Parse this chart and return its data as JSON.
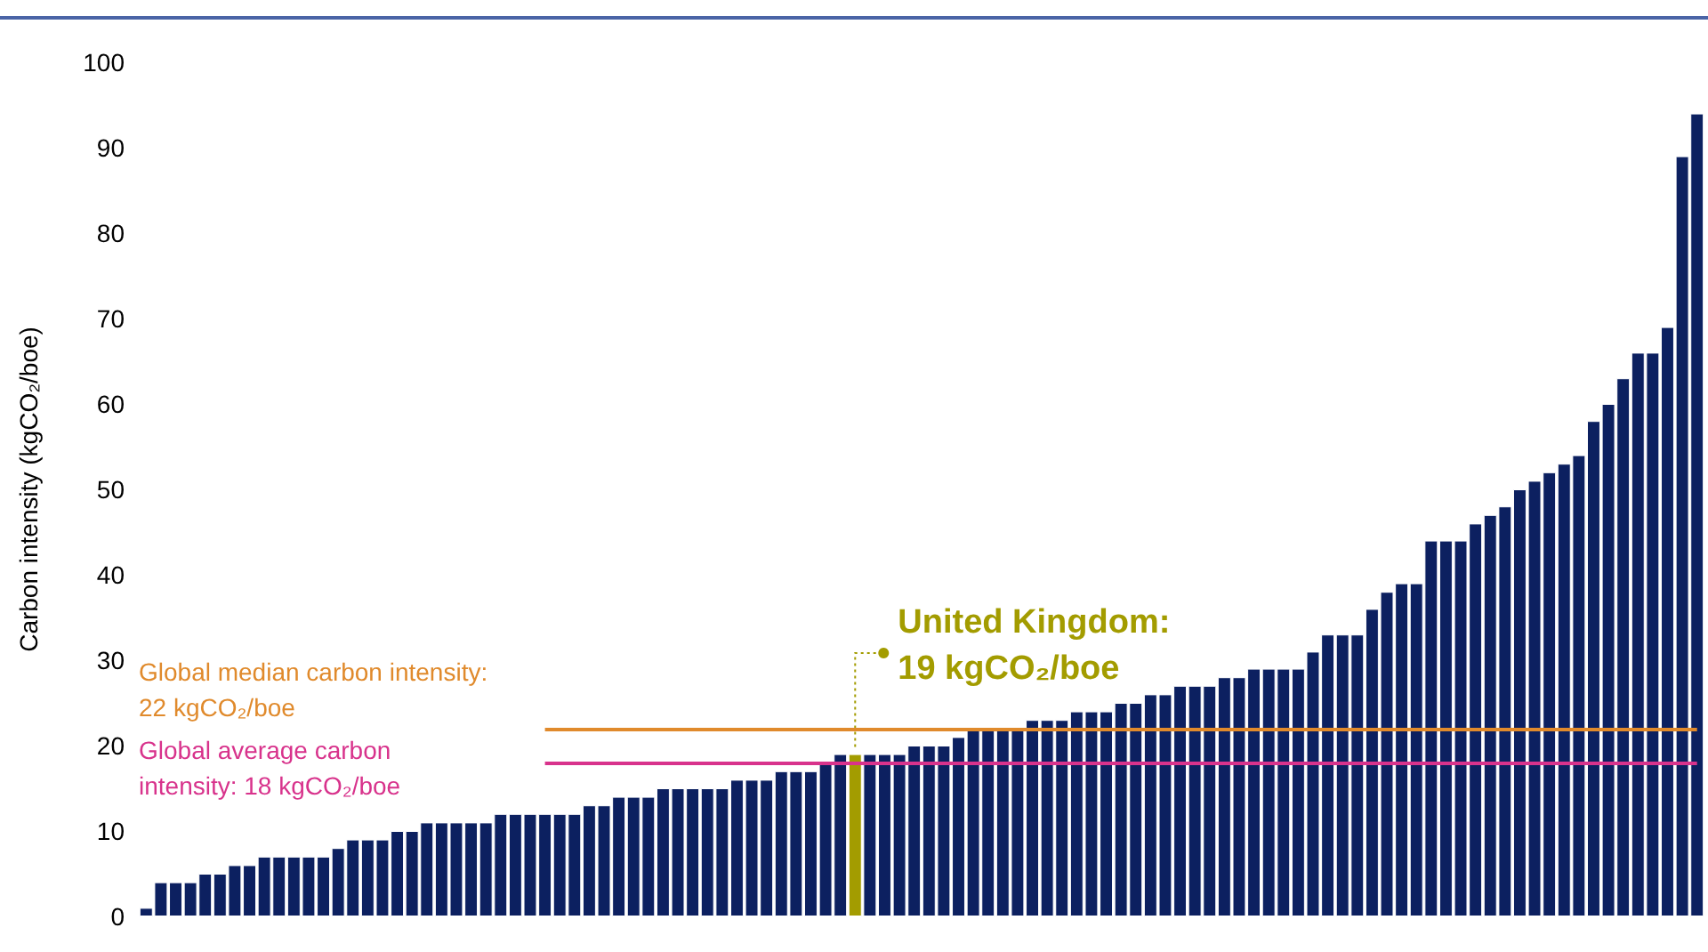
{
  "chart_data": {
    "type": "bar",
    "ylabel": "Carbon intensity (kgCO₂/boe)",
    "categories": [
      null,
      null,
      null,
      null,
      null,
      null,
      null,
      null,
      null,
      null,
      null,
      null,
      null,
      null,
      null,
      null,
      null,
      null,
      null,
      null,
      null,
      null,
      null,
      null,
      null,
      null,
      null,
      null,
      null,
      null,
      null,
      null,
      null,
      null,
      null,
      null,
      null,
      null,
      null,
      null,
      null,
      null,
      null,
      null,
      null,
      null,
      null,
      null,
      null,
      null,
      null,
      null,
      null,
      null,
      null,
      null,
      null,
      null,
      null,
      null,
      null,
      null,
      null,
      null,
      null,
      null,
      null,
      null,
      null,
      null,
      null,
      null,
      null,
      null,
      null,
      null,
      null,
      null,
      null,
      null,
      null,
      null,
      null,
      null,
      null,
      null,
      null,
      null,
      null,
      null,
      null,
      null,
      null,
      null,
      null,
      null,
      null,
      null,
      null,
      null,
      null,
      null,
      null,
      null,
      null,
      null
    ],
    "values": [
      1,
      4,
      4,
      4,
      5,
      5,
      6,
      6,
      7,
      7,
      7,
      7,
      7,
      8,
      9,
      9,
      9,
      10,
      10,
      11,
      11,
      11,
      11,
      11,
      12,
      12,
      12,
      12,
      12,
      12,
      13,
      13,
      14,
      14,
      14,
      15,
      15,
      15,
      15,
      15,
      16,
      16,
      16,
      17,
      17,
      17,
      18,
      19,
      19,
      19,
      19,
      19,
      20,
      20,
      20,
      21,
      22,
      22,
      22,
      22,
      23,
      23,
      23,
      24,
      24,
      24,
      25,
      25,
      26,
      26,
      27,
      27,
      27,
      28,
      28,
      29,
      29,
      29,
      29,
      31,
      33,
      33,
      33,
      36,
      38,
      39,
      39,
      44,
      44,
      44,
      46,
      47,
      48,
      50,
      51,
      52,
      53,
      54,
      58,
      60,
      63,
      66,
      66,
      69,
      89,
      94
    ],
    "colors": [
      "#0c2060",
      "#0c2060",
      "#0c2060",
      "#0c2060",
      "#0c2060",
      "#0c2060",
      "#0c2060",
      "#0c2060",
      "#0c2060",
      "#0c2060",
      "#0c2060",
      "#0c2060",
      "#0c2060",
      "#0c2060",
      "#0c2060",
      "#0c2060",
      "#0c2060",
      "#0c2060",
      "#0c2060",
      "#0c2060",
      "#0c2060",
      "#0c2060",
      "#0c2060",
      "#0c2060",
      "#0c2060",
      "#0c2060",
      "#0c2060",
      "#0c2060",
      "#0c2060",
      "#0c2060",
      "#0c2060",
      "#0c2060",
      "#0c2060",
      "#0c2060",
      "#0c2060",
      "#0c2060",
      "#0c2060",
      "#0c2060",
      "#0c2060",
      "#0c2060",
      "#0c2060",
      "#0c2060",
      "#0c2060",
      "#0c2060",
      "#0c2060",
      "#0c2060",
      "#0c2060",
      "#0c2060",
      "#a39c00",
      "#0c2060",
      "#0c2060",
      "#0c2060",
      "#0c2060",
      "#0c2060",
      "#0c2060",
      "#0c2060",
      "#0c2060",
      "#0c2060",
      "#0c2060",
      "#0c2060",
      "#0c2060",
      "#0c2060",
      "#0c2060",
      "#0c2060",
      "#0c2060",
      "#0c2060",
      "#0c2060",
      "#0c2060",
      "#0c2060",
      "#0c2060",
      "#0c2060",
      "#0c2060",
      "#0c2060",
      "#0c2060",
      "#0c2060",
      "#0c2060",
      "#0c2060",
      "#0c2060",
      "#0c2060",
      "#0c2060",
      "#0c2060",
      "#0c2060",
      "#0c2060",
      "#0c2060",
      "#0c2060",
      "#0c2060",
      "#0c2060",
      "#0c2060",
      "#0c2060",
      "#0c2060",
      "#0c2060",
      "#0c2060",
      "#0c2060",
      "#0c2060",
      "#0c2060",
      "#0c2060",
      "#0c2060",
      "#0c2060",
      "#0c2060",
      "#0c2060",
      "#0c2060",
      "#0c2060",
      "#0c2060",
      "#0c2060",
      "#0c2060",
      "#0c2060"
    ],
    "ylim": [
      0,
      100
    ],
    "yticks": [
      0,
      10,
      20,
      30,
      40,
      50,
      60,
      70,
      80,
      90,
      100
    ],
    "ref_lines": [
      {
        "axis": "y",
        "value": 22,
        "label": "Global median carbon intensity: 22 kgCO₂/boe",
        "color": "#e08a2c"
      },
      {
        "axis": "y",
        "value": 18,
        "label": "Global average carbon intensity: 18 kgCO₂/boe",
        "color": "#d8338c"
      }
    ],
    "annotations": [
      {
        "text": "United Kingdom:\n19 kgCO₂/boe",
        "y": 19
      }
    ]
  }
}
